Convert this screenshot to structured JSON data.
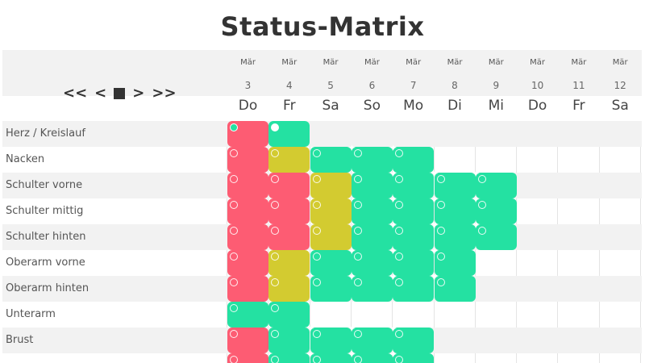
{
  "title": "Status-Matrix",
  "nav": {
    "first_label": "<<",
    "prev_label": "<",
    "next_label": ">",
    "last_label": ">>"
  },
  "columns": [
    {
      "month": "Mär",
      "day": "3",
      "weekday": "Do"
    },
    {
      "month": "Mär",
      "day": "4",
      "weekday": "Fr"
    },
    {
      "month": "Mär",
      "day": "5",
      "weekday": "Sa"
    },
    {
      "month": "Mär",
      "day": "6",
      "weekday": "So"
    },
    {
      "month": "Mär",
      "day": "7",
      "weekday": "Mo"
    },
    {
      "month": "Mär",
      "day": "8",
      "weekday": "Di"
    },
    {
      "month": "Mär",
      "day": "9",
      "weekday": "Mi"
    },
    {
      "month": "Mär",
      "day": "10",
      "weekday": "Do"
    },
    {
      "month": "Mär",
      "day": "11",
      "weekday": "Fr"
    },
    {
      "month": "Mär",
      "day": "12",
      "weekday": "Sa"
    }
  ],
  "colors": {
    "red": "#fd5c73",
    "yellow": "#d3cb30",
    "green": "#24e1a2"
  },
  "rows": [
    {
      "label": "Herz / Kreislauf",
      "status": [
        "red",
        "green",
        "",
        "",
        "",
        "",
        "",
        "",
        "",
        ""
      ]
    },
    {
      "label": "Nacken",
      "status": [
        "red",
        "yellow",
        "green",
        "green",
        "green",
        "",
        "",
        "",
        "",
        ""
      ]
    },
    {
      "label": "Schulter vorne",
      "status": [
        "red",
        "red",
        "yellow",
        "green",
        "green",
        "green",
        "green",
        "",
        "",
        ""
      ]
    },
    {
      "label": "Schulter mittig",
      "status": [
        "red",
        "red",
        "yellow",
        "green",
        "green",
        "green",
        "green",
        "",
        "",
        ""
      ]
    },
    {
      "label": "Schulter hinten",
      "status": [
        "red",
        "red",
        "yellow",
        "green",
        "green",
        "green",
        "green",
        "",
        "",
        ""
      ]
    },
    {
      "label": "Oberarm vorne",
      "status": [
        "red",
        "yellow",
        "green",
        "green",
        "green",
        "green",
        "",
        "",
        "",
        ""
      ]
    },
    {
      "label": "Oberarm hinten",
      "status": [
        "red",
        "yellow",
        "green",
        "green",
        "green",
        "green",
        "",
        "",
        "",
        ""
      ]
    },
    {
      "label": "Unterarm",
      "status": [
        "green",
        "green",
        "",
        "",
        "",
        "",
        "",
        "",
        "",
        ""
      ]
    },
    {
      "label": "Brust",
      "status": [
        "red",
        "green",
        "green",
        "green",
        "green",
        "",
        "",
        "",
        "",
        ""
      ]
    },
    {
      "label": "",
      "status": [
        "red",
        "green",
        "green",
        "green",
        "green",
        "",
        "",
        "",
        "",
        ""
      ]
    }
  ]
}
